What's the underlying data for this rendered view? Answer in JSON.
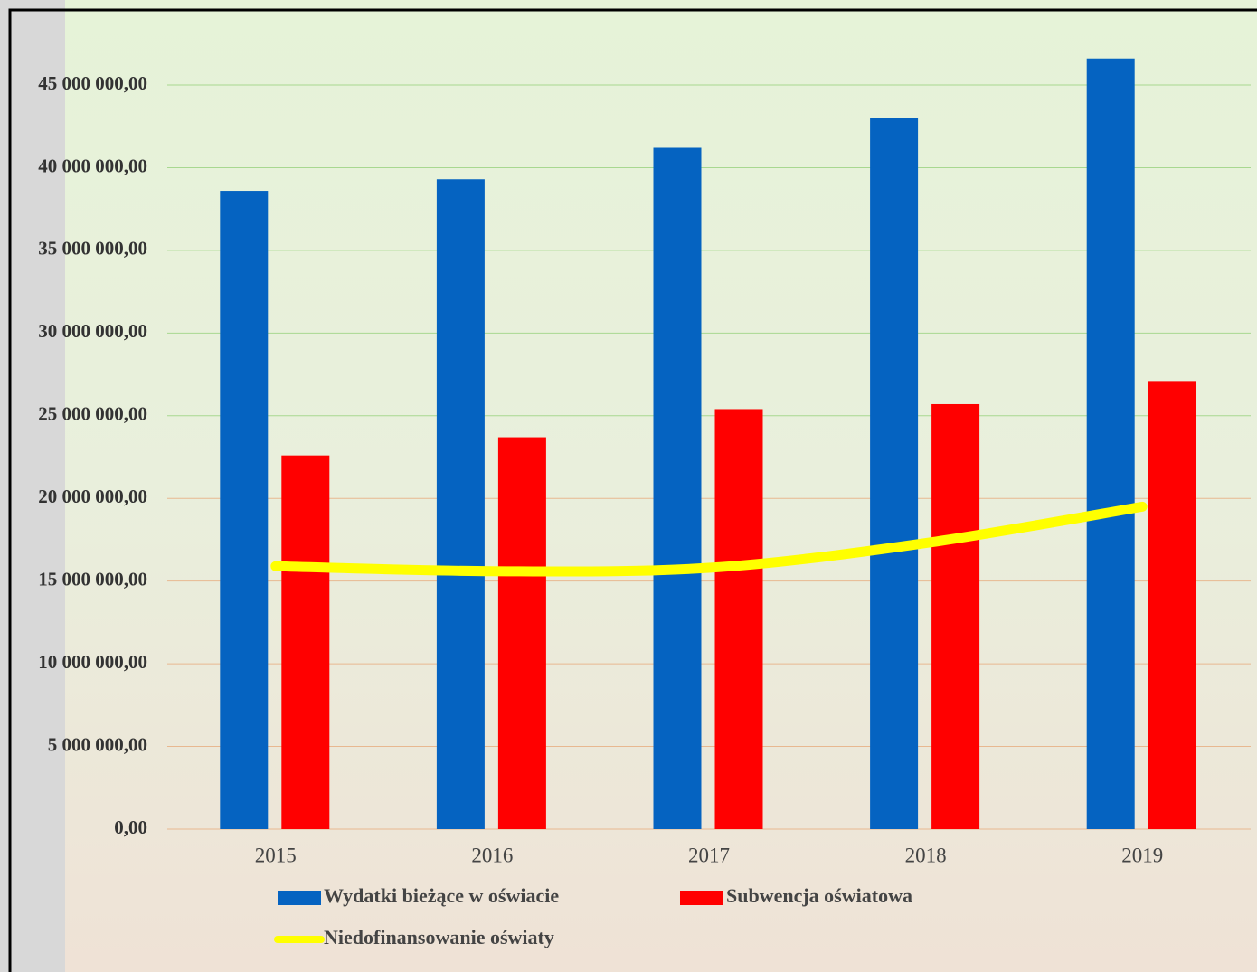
{
  "chart_data": {
    "type": "bar_line",
    "categories": [
      "2015",
      "2016",
      "2017",
      "2018",
      "2019"
    ],
    "series": [
      {
        "name": "Wydatki bieżące w oświacie",
        "type": "bar",
        "color": "#0563c1",
        "values": [
          38600000,
          39300000,
          41200000,
          43000000,
          46600000
        ]
      },
      {
        "name": "Subwencja oświatowa",
        "type": "bar",
        "color": "#ff0000",
        "values": [
          22600000,
          23700000,
          25400000,
          25700000,
          27100000
        ]
      },
      {
        "name": "Niedofinansowanie oświaty",
        "type": "line",
        "color": "#ffff00",
        "values": [
          15900000,
          15600000,
          15800000,
          17300000,
          19500000
        ]
      }
    ],
    "ylim": [
      0,
      49500000
    ],
    "yticks": [
      {
        "value": 0,
        "label": "0,00"
      },
      {
        "value": 5000000,
        "label": "5 000 000,00"
      },
      {
        "value": 10000000,
        "label": "10 000 000,00"
      },
      {
        "value": 15000000,
        "label": "15 000 000,00"
      },
      {
        "value": 20000000,
        "label": "20 000 000,00"
      },
      {
        "value": 25000000,
        "label": "25 000 000,00"
      },
      {
        "value": 30000000,
        "label": "30 000 000,00"
      },
      {
        "value": 35000000,
        "label": "35 000 000,00"
      },
      {
        "value": 40000000,
        "label": "40 000 000,00"
      },
      {
        "value": 45000000,
        "label": "45 000 000,00"
      }
    ],
    "grid": true
  }
}
